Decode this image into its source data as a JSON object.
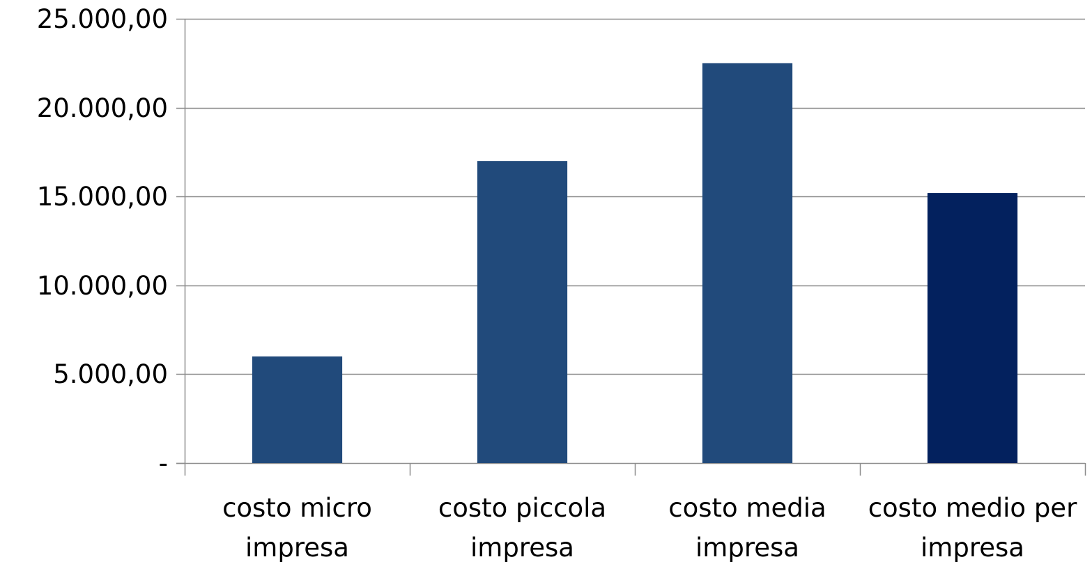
{
  "chart_data": {
    "type": "bar",
    "title": "",
    "xlabel": "",
    "ylabel": "",
    "categories": [
      [
        "costo micro",
        "impresa"
      ],
      [
        "costo piccola",
        "impresa"
      ],
      [
        "costo media",
        "impresa"
      ],
      [
        "costo medio per",
        "impresa"
      ]
    ],
    "values": [
      6000,
      17000,
      22500,
      15200
    ],
    "bar_colors": [
      "#214A7B",
      "#214A7B",
      "#214A7B",
      "#03215E"
    ],
    "ylim": [
      0,
      25000
    ],
    "yticks": [
      0,
      5000,
      10000,
      15000,
      20000,
      25000
    ],
    "ytick_labels": [
      "-",
      "5.000,00",
      "10.000,00",
      "15.000,00",
      "20.000,00",
      "25.000,00"
    ],
    "grid": true,
    "legend": "none",
    "gridline_color": "#8C8C8C",
    "axis_color": "#8C8C8C"
  }
}
